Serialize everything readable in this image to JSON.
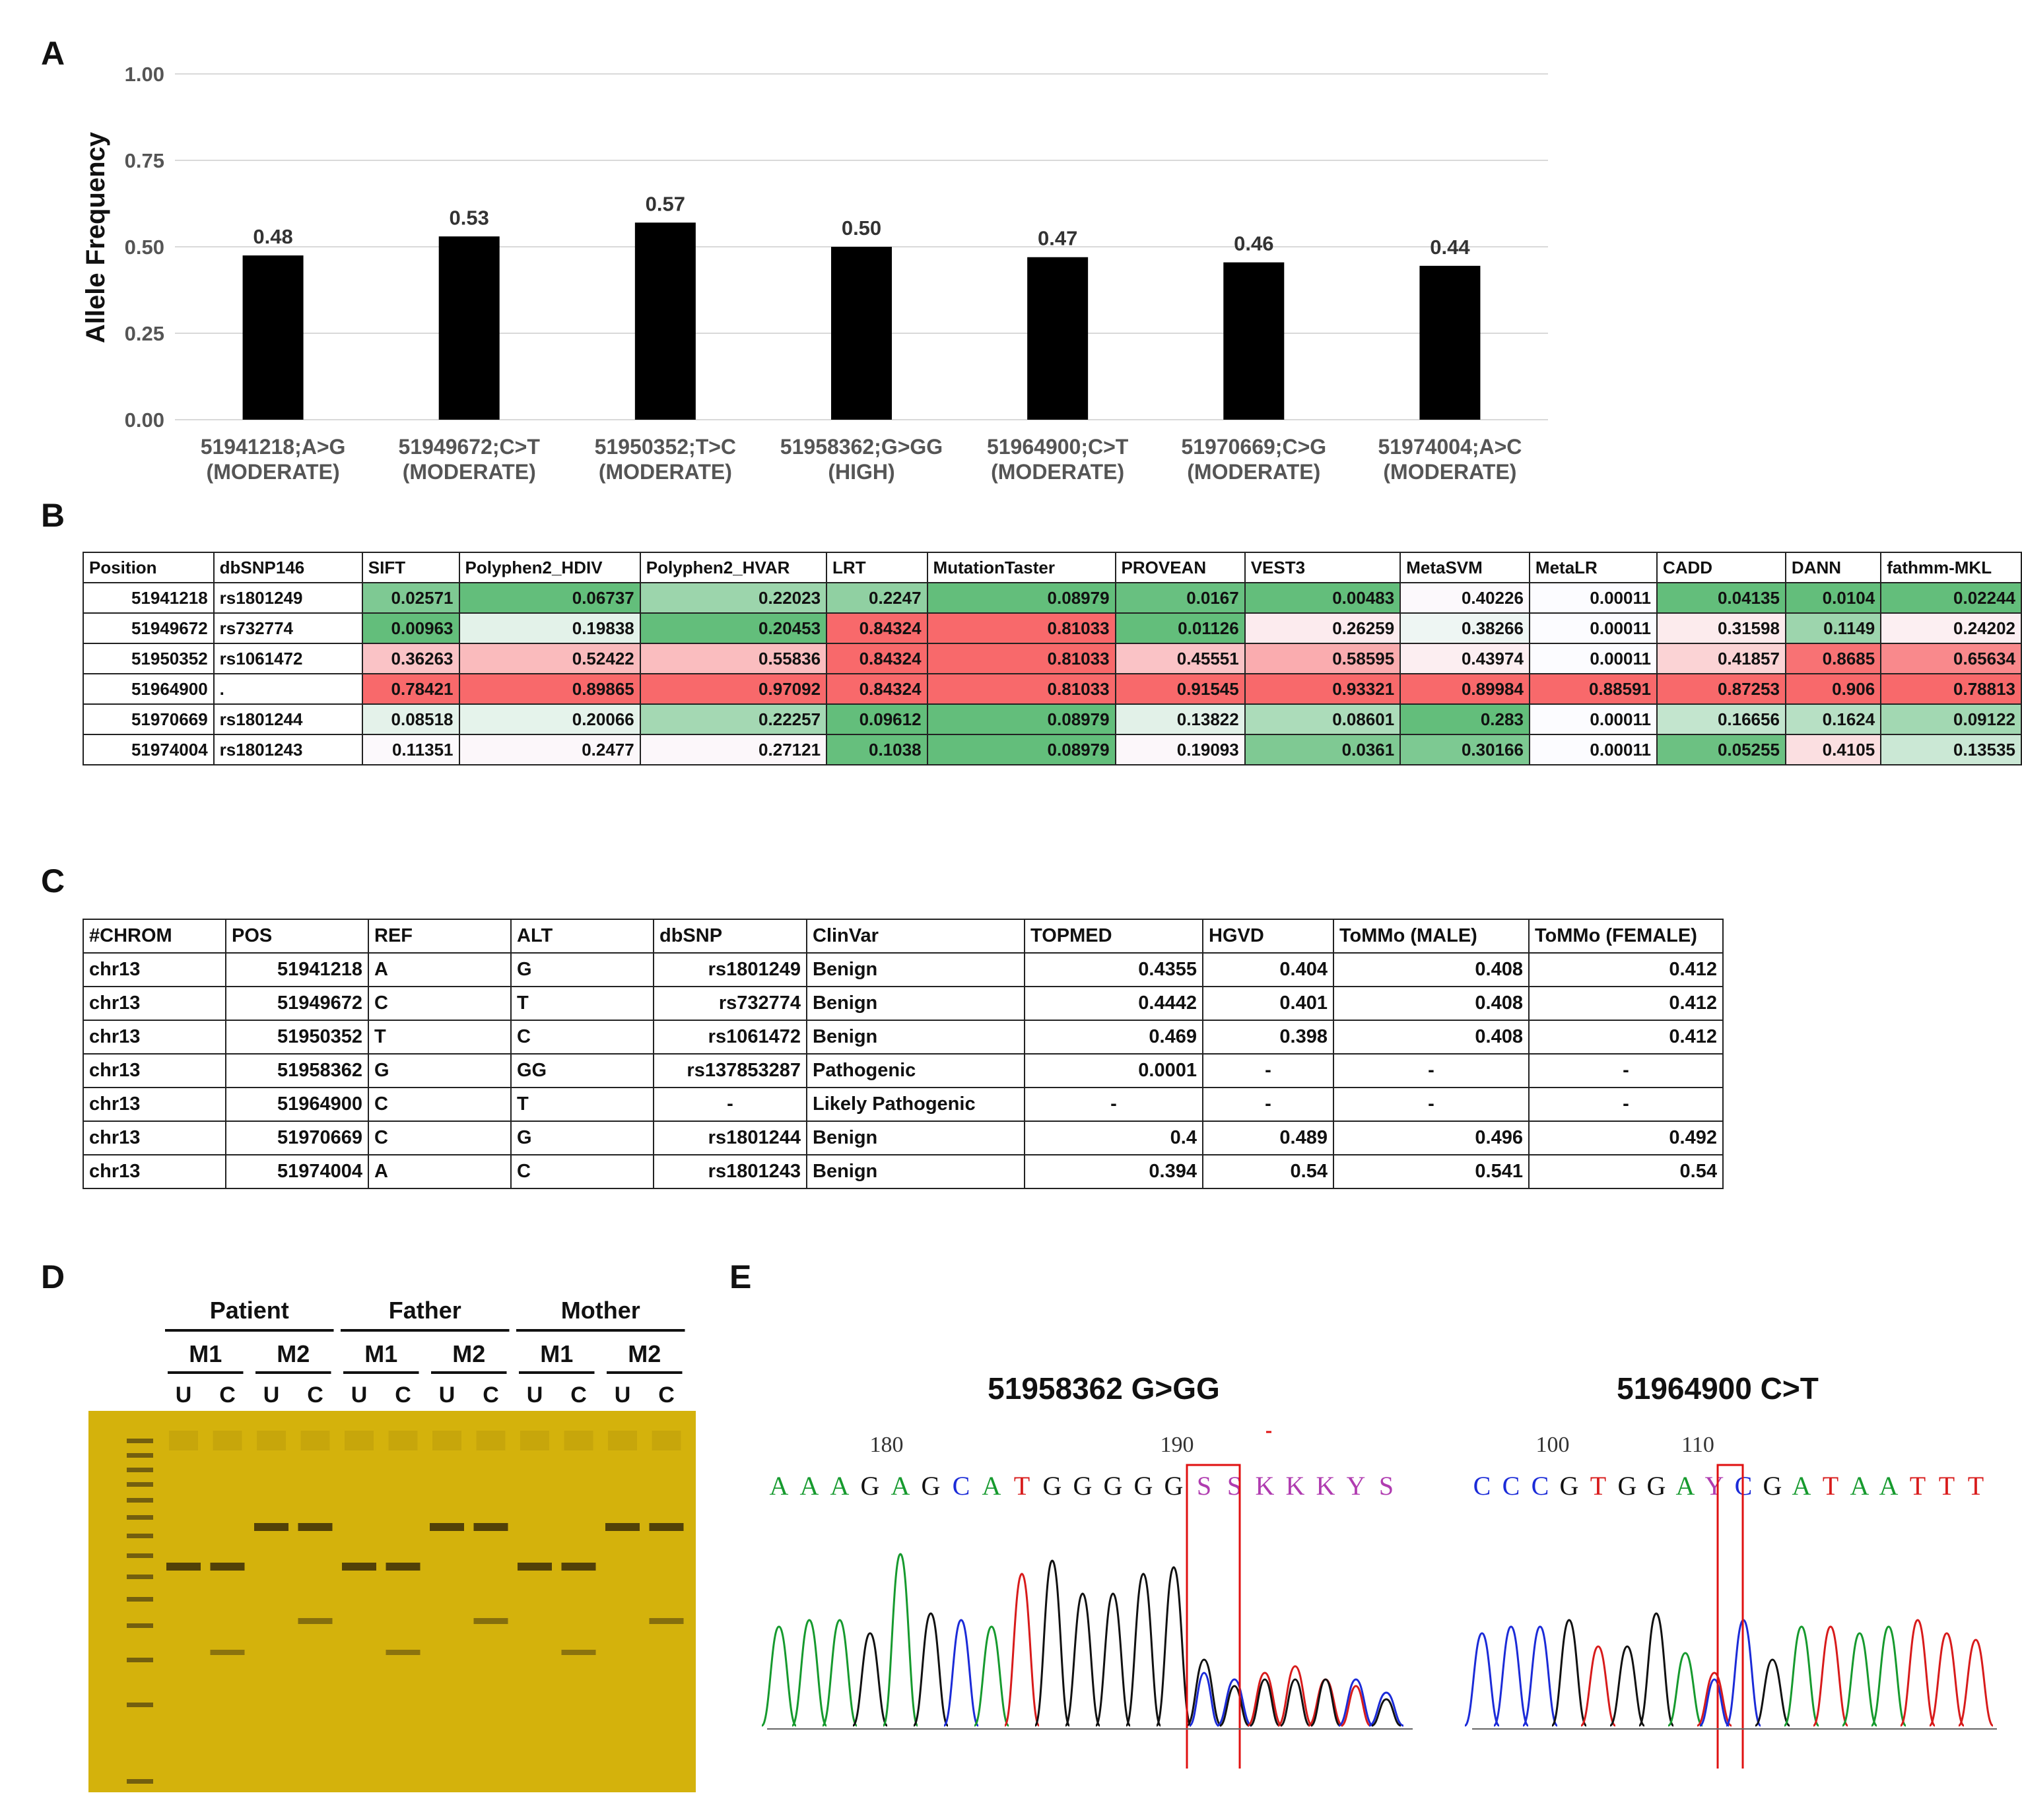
{
  "panels": {
    "A": "A",
    "B": "B",
    "C": "C",
    "D": "D",
    "E": "E"
  },
  "chart_data": {
    "type": "bar",
    "title": "",
    "xlabel": "",
    "ylabel": "Allele Frequency",
    "ylim": [
      0,
      1.0
    ],
    "yticks": [
      "0.00",
      "0.25",
      "0.50",
      "0.75",
      "1.00"
    ],
    "grid": true,
    "categories": [
      [
        "51941218;A>G",
        "(MODERATE)"
      ],
      [
        "51949672;C>T",
        "(MODERATE)"
      ],
      [
        "51950352;T>C",
        "(MODERATE)"
      ],
      [
        "51958362;G>GG",
        "(HIGH)"
      ],
      [
        "51964900;C>T",
        "(MODERATE)"
      ],
      [
        "51970669;C>G",
        "(MODERATE)"
      ],
      [
        "51974004;A>C",
        "(MODERATE)"
      ]
    ],
    "values": [
      0.475,
      0.53,
      0.57,
      0.5,
      0.47,
      0.455,
      0.445
    ],
    "data_labels": [
      "0.48",
      "0.53",
      "0.57",
      "0.50",
      "0.47",
      "0.46",
      "0.44"
    ],
    "bar_color": "#000000"
  },
  "tableB": {
    "headers": [
      "Position",
      "dbSNP146",
      "SIFT",
      "Polyphen2_HDIV",
      "Polyphen2_HVAR",
      "LRT",
      "MutationTaster",
      "PROVEAN",
      "VEST3",
      "MetaSVM",
      "MetaLR",
      "CADD",
      "DANN",
      "fathmm-MKL"
    ],
    "rows": [
      {
        "pos": "51941218",
        "snp": "rs1801249",
        "scores": [
          "0.02571",
          "0.06737",
          "0.22023",
          "0.2247",
          "0.08979",
          "0.0167",
          "0.00483",
          "0.40226",
          "0.00011",
          "0.04135",
          "0.0104",
          "0.02244"
        ]
      },
      {
        "pos": "51949672",
        "snp": "rs732774",
        "scores": [
          "0.00963",
          "0.19838",
          "0.20453",
          "0.84324",
          "0.81033",
          "0.01126",
          "0.26259",
          "0.38266",
          "0.00011",
          "0.31598",
          "0.1149",
          "0.24202"
        ]
      },
      {
        "pos": "51950352",
        "snp": "rs1061472",
        "scores": [
          "0.36263",
          "0.52422",
          "0.55836",
          "0.84324",
          "0.81033",
          "0.45551",
          "0.58595",
          "0.43974",
          "0.00011",
          "0.41857",
          "0.8685",
          "0.65634"
        ]
      },
      {
        "pos": "51964900",
        "snp": ".",
        "scores": [
          "0.78421",
          "0.89865",
          "0.97092",
          "0.84324",
          "0.81033",
          "0.91545",
          "0.93321",
          "0.89984",
          "0.88591",
          "0.87253",
          "0.906",
          "0.78813"
        ]
      },
      {
        "pos": "51970669",
        "snp": "rs1801244",
        "scores": [
          "0.08518",
          "0.20066",
          "0.22257",
          "0.09612",
          "0.08979",
          "0.13822",
          "0.08601",
          "0.283",
          "0.00011",
          "0.16656",
          "0.1624",
          "0.09122"
        ]
      },
      {
        "pos": "51974004",
        "snp": "rs1801243",
        "scores": [
          "0.11351",
          "0.2477",
          "0.27121",
          "0.1038",
          "0.08979",
          "0.19093",
          "0.0361",
          "0.30166",
          "0.00011",
          "0.05255",
          "0.4105",
          "0.13535"
        ]
      }
    ],
    "colors": {
      "green": "#63be7b",
      "white": "#fcfcff",
      "red": "#f8696b"
    }
  },
  "tableC": {
    "headers": [
      "#CHROM",
      "POS",
      "REF",
      "ALT",
      "dbSNP",
      "ClinVar",
      "TOPMED",
      "HGVD",
      "ToMMo (MALE)",
      "ToMMo (FEMALE)"
    ],
    "rows": [
      [
        "chr13",
        "51941218",
        "A",
        "G",
        "rs1801249",
        "Benign",
        "0.4355",
        "0.404",
        "0.408",
        "0.412"
      ],
      [
        "chr13",
        "51949672",
        "C",
        "T",
        "rs732774",
        "Benign",
        "0.4442",
        "0.401",
        "0.408",
        "0.412"
      ],
      [
        "chr13",
        "51950352",
        "T",
        "C",
        "rs1061472",
        "Benign",
        "0.469",
        "0.398",
        "0.408",
        "0.412"
      ],
      [
        "chr13",
        "51958362",
        "G",
        "GG",
        "rs137853287",
        "Pathogenic",
        "0.0001",
        "-",
        "-",
        "-"
      ],
      [
        "chr13",
        "51964900",
        "C",
        "T",
        "-",
        "Likely Pathogenic",
        "-",
        "-",
        "-",
        "-"
      ],
      [
        "chr13",
        "51970669",
        "C",
        "G",
        "rs1801244",
        "Benign",
        "0.4",
        "0.489",
        "0.496",
        "0.492"
      ],
      [
        "chr13",
        "51974004",
        "A",
        "C",
        "rs1801243",
        "Benign",
        "0.394",
        "0.54",
        "0.541",
        "0.54"
      ]
    ]
  },
  "gel": {
    "groups": [
      "Patient",
      "Father",
      "Mother"
    ],
    "markers": [
      "M1",
      "M2",
      "M1",
      "M2",
      "M1",
      "M2"
    ],
    "lanes": [
      "U",
      "C",
      "U",
      "C",
      "U",
      "C",
      "U",
      "C",
      "U",
      "C",
      "U",
      "C"
    ],
    "gel_color": "#d4b20c"
  },
  "sequencing": {
    "left": {
      "title": "51958362 G>GG",
      "pos1": "180",
      "pos2": "190",
      "bases": [
        "A",
        "A",
        "A",
        "G",
        "A",
        "G",
        "C",
        "A",
        "T",
        "G",
        "G",
        "G",
        "G",
        "G",
        "S",
        "S",
        "K",
        "K",
        "K",
        "Y",
        "S"
      ]
    },
    "right": {
      "title": "51964900 C>T",
      "pos1": "100",
      "pos2": "110",
      "bases": [
        "C",
        "C",
        "C",
        "G",
        "T",
        "G",
        "G",
        "A",
        "Y",
        "C",
        "G",
        "A",
        "T",
        "A",
        "A",
        "T",
        "T",
        "T"
      ]
    },
    "base_colors": {
      "A": "#169a2e",
      "C": "#1b2bd8",
      "G": "#111111",
      "T": "#d81b1b",
      "S": "#b03cb0",
      "K": "#b03cb0",
      "Y": "#b03cb0"
    }
  }
}
